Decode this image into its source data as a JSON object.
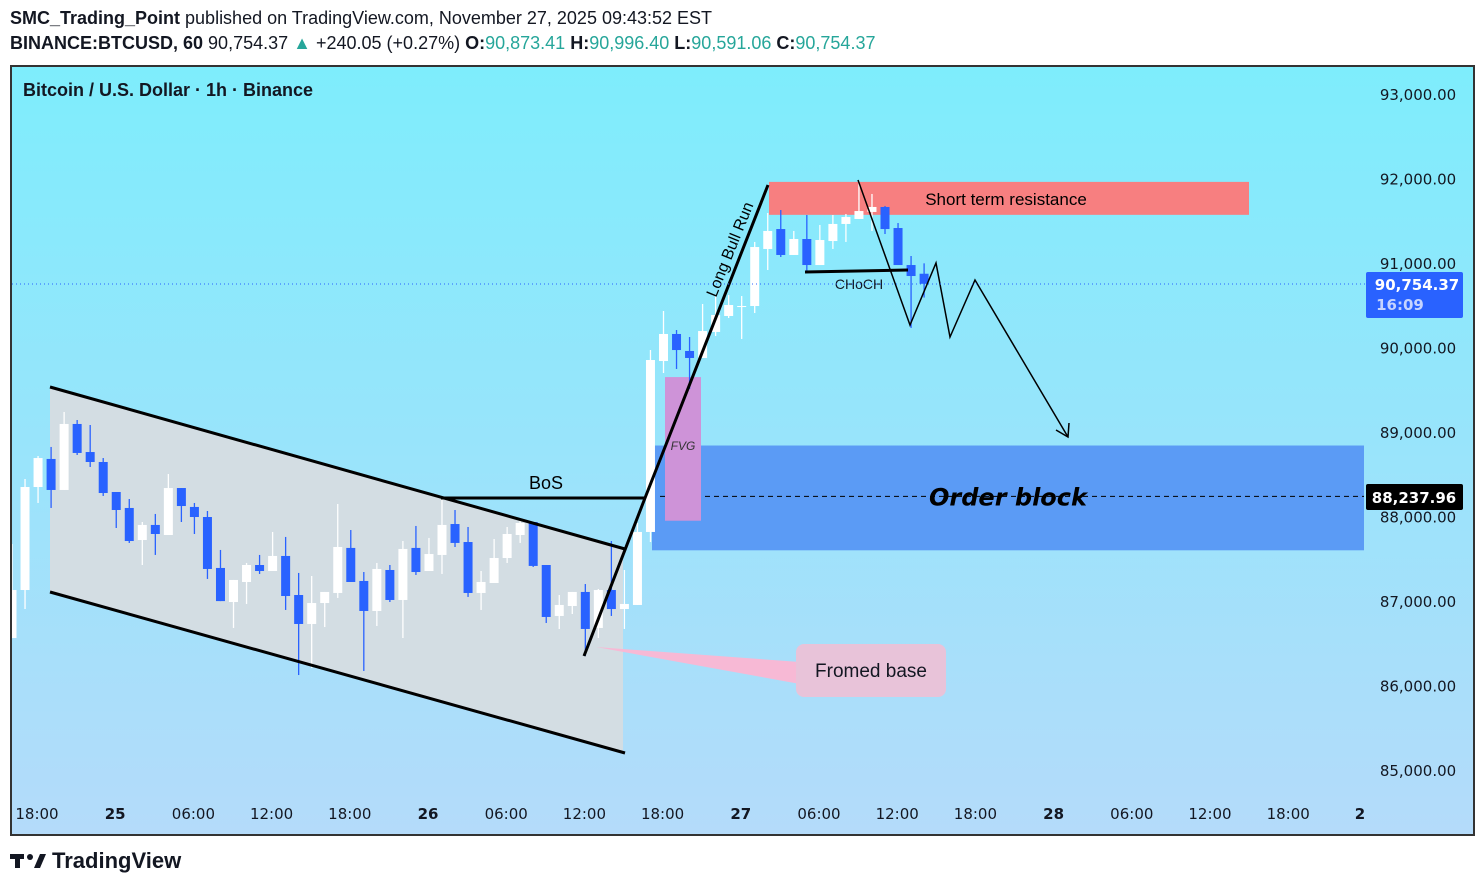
{
  "header": {
    "author": "SMC_Trading_Point",
    "published": "published on TradingView.com, November 27, 2025 09:43:52 EST",
    "symbol": "BINANCE:BTCUSD, 60",
    "last": "90,754.37",
    "change": "+240.05 (+0.27%)",
    "o_label": "O:",
    "o": "90,873.41",
    "h_label": "H:",
    "h": "90,996.40",
    "l_label": "L:",
    "l": "90,591.06",
    "c_label": "C:",
    "c": "90,754.37",
    "up_color": "#26a69a"
  },
  "chart_title": "Bitcoin / U.S. Dollar · 1h · Binance",
  "brand": "TradingView",
  "annotations": {
    "bos": "BoS",
    "bull_run": "Long Bull Run",
    "fvg": "FVG",
    "order_block": "Order block",
    "resistance": "Short term resistance",
    "choch": "CHoCH",
    "base": "Fromed base"
  },
  "price_label": {
    "value": "90,754.37",
    "countdown": "16:09",
    "color": "#2962ff"
  },
  "order_block_label": "88,237.96",
  "chart_data": {
    "type": "candlestick",
    "interval": "1h",
    "x_start": "Nov 24 16:00",
    "ylim": [
      84500,
      93500
    ],
    "y_ticks": [
      "85,000.00",
      "86,000.00",
      "87,000.00",
      "88,000.00",
      "89,000.00",
      "90,000.00",
      "91,000.00",
      "92,000.00",
      "93,000.00"
    ],
    "y_tick_values": [
      85000,
      86000,
      87000,
      88000,
      89000,
      90000,
      91000,
      92000,
      93000
    ],
    "x_ticks": [
      "18:00",
      "25",
      "06:00",
      "12:00",
      "18:00",
      "26",
      "06:00",
      "12:00",
      "18:00",
      "27",
      "06:00",
      "12:00",
      "18:00",
      "28",
      "06:00",
      "12:00",
      "18:00",
      "2"
    ],
    "up_color": "#ffffff",
    "down_color": "#2962ff",
    "order_block_range": [
      87600,
      88840
    ],
    "order_block_level": 88237.96,
    "fvg_range": [
      87950,
      89650
    ],
    "resistance_range": [
      91570,
      91960
    ],
    "last_price": 90754.37,
    "candles": [
      [
        86562,
        87675,
        86560,
        87130
      ],
      [
        87130,
        88444,
        86905,
        88349
      ],
      [
        88349,
        88716,
        88160,
        88692
      ],
      [
        88681,
        88823,
        88101,
        88314
      ],
      [
        88314,
        89237,
        88314,
        89095
      ],
      [
        89095,
        89142,
        88728,
        88752
      ],
      [
        88763,
        89083,
        88586,
        88645
      ],
      [
        88645,
        88692,
        88243,
        88278
      ],
      [
        88290,
        88290,
        87864,
        88077
      ],
      [
        88101,
        88207,
        87687,
        87710
      ],
      [
        87722,
        87935,
        87426,
        87900
      ],
      [
        87900,
        88030,
        87545,
        87793
      ],
      [
        87781,
        88503,
        87781,
        88337
      ],
      [
        88337,
        88337,
        87935,
        88124
      ],
      [
        88113,
        88160,
        87793,
        87994
      ],
      [
        87994,
        88065,
        87261,
        87379
      ],
      [
        87391,
        87604,
        86999,
        86999
      ],
      [
        86988,
        87249,
        86681,
        87249
      ],
      [
        87225,
        87450,
        86965,
        87426
      ],
      [
        87426,
        87545,
        87320,
        87355
      ],
      [
        87355,
        87817,
        87355,
        87533
      ],
      [
        87533,
        87758,
        86894,
        87059
      ],
      [
        87071,
        87332,
        86124,
        86728
      ],
      [
        86728,
        87296,
        86207,
        86976
      ],
      [
        86976,
        87107,
        86692,
        87107
      ],
      [
        87095,
        88148,
        87036,
        87639
      ],
      [
        87628,
        87840,
        87225,
        87225
      ],
      [
        87237,
        87343,
        86172,
        86882
      ],
      [
        86882,
        87450,
        86704,
        87379
      ],
      [
        87367,
        87426,
        86988,
        87012
      ],
      [
        87012,
        87710,
        86562,
        87616
      ],
      [
        87628,
        87888,
        87308,
        87343
      ],
      [
        87355,
        87746,
        87355,
        87556
      ],
      [
        87545,
        88243,
        87320,
        87900
      ],
      [
        87911,
        88077,
        87639,
        87687
      ],
      [
        87698,
        87876,
        87048,
        87095
      ],
      [
        87095,
        87355,
        86894,
        87225
      ],
      [
        87213,
        87734,
        87213,
        87509
      ],
      [
        87509,
        87876,
        87450,
        87793
      ],
      [
        87781,
        87959,
        87687,
        87923
      ],
      [
        87935,
        87935,
        87403,
        87415
      ],
      [
        87426,
        87426,
        86740,
        86811
      ],
      [
        86823,
        87071,
        86669,
        86953
      ],
      [
        86941,
        87107,
        86846,
        87107
      ],
      [
        87107,
        87201,
        86349,
        86669
      ],
      [
        86681,
        87142,
        86562,
        87130
      ],
      [
        87130,
        87710,
        86823,
        86905
      ],
      [
        86905,
        87367,
        86669,
        86965
      ],
      [
        86953,
        87923,
        86953,
        87817
      ],
      [
        87817,
        89970,
        87698,
        89852
      ],
      [
        89840,
        90432,
        89698,
        90160
      ],
      [
        90160,
        90207,
        89746,
        89970
      ],
      [
        89959,
        90124,
        89509,
        89876
      ],
      [
        89876,
        90515,
        89876,
        90195
      ],
      [
        90184,
        90621,
        90136,
        90385
      ],
      [
        90373,
        90621,
        90349,
        90503
      ],
      [
        90479,
        90609,
        90101,
        90491
      ],
      [
        90491,
        91249,
        90408,
        91189
      ],
      [
        91166,
        91592,
        90917,
        91379
      ],
      [
        91402,
        91627,
        91071,
        91095
      ],
      [
        91095,
        91379,
        91095,
        91284
      ],
      [
        91284,
        91568,
        90894,
        90976
      ],
      [
        90976,
        91450,
        90976,
        91272
      ],
      [
        91260,
        91568,
        91166,
        91462
      ],
      [
        91462,
        91580,
        91249,
        91544
      ],
      [
        91521,
        91970,
        91521,
        91615
      ],
      [
        91604,
        91817,
        91379,
        91663
      ],
      [
        91663,
        91675,
        91343,
        91402
      ],
      [
        91414,
        91473,
        90976,
        90976
      ],
      [
        90976,
        91083,
        90231,
        90846
      ],
      [
        90873,
        90996,
        90591,
        90754
      ]
    ]
  }
}
